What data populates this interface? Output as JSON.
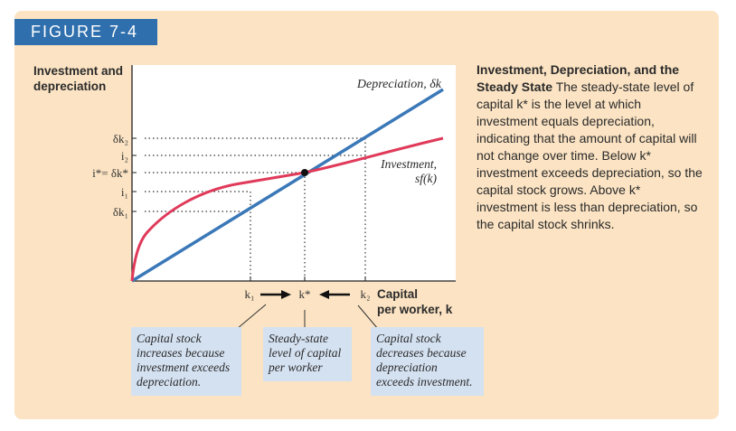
{
  "figure_label": "FIGURE 7-4",
  "y_axis_title": "Investment and depreciation",
  "y_ticks": {
    "dk2": "δk₂",
    "i2": "i₂",
    "istar": "i*= δk*",
    "i1": "i₁",
    "dk1": "δk₁"
  },
  "x_ticks": {
    "k1": "k₁",
    "kstar": "k*",
    "k2": "k₂"
  },
  "x_axis_title_line1": "Capital",
  "x_axis_title_line2": "per worker, k",
  "curve_labels": {
    "depreciation": "Depreciation, δk",
    "investment_line1": "Investment,",
    "investment_line2": "sf(k)"
  },
  "caption": {
    "title": "Investment, Depreciation, and the Steady State",
    "body": "The steady-state level of capital k* is the level at which investment equals depreciation, indicating that the amount of capital will not change over time. Below k* investment exceeds depreciation, so the capital stock grows. Above k* investment is less than depreciation, so the capital stock shrinks."
  },
  "notes": {
    "left": "Capital stock increases because investment exceeds depreciation.",
    "middle": "Steady-state level of capital per worker",
    "right": "Capital stock decreases because depreciation exceeds investment."
  },
  "colors": {
    "depreciation_line": "#3a78b8",
    "investment_curve": "#e03a5a",
    "panel": "#fbe3c3",
    "tab": "#2f6fad",
    "note_box": "#d4e1f1"
  }
}
